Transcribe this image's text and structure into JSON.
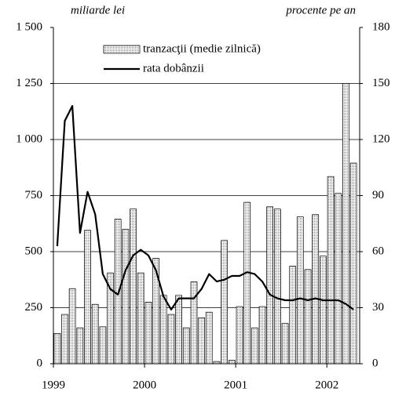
{
  "chart_data": {
    "type": "bar_line",
    "y_label": "miliarde lei",
    "y2_label": "procente pe an",
    "x": [
      1999.042,
      1999.125,
      1999.208,
      1999.292,
      1999.375,
      1999.458,
      1999.542,
      1999.625,
      1999.708,
      1999.792,
      1999.875,
      1999.958,
      2000.042,
      2000.125,
      2000.208,
      2000.292,
      2000.375,
      2000.458,
      2000.542,
      2000.625,
      2000.708,
      2000.792,
      2000.875,
      2000.958,
      2001.042,
      2001.125,
      2001.208,
      2001.292,
      2001.375,
      2001.458,
      2001.542,
      2001.625,
      2001.708,
      2001.792,
      2001.875,
      2001.958,
      2002.042,
      2002.125,
      2002.208,
      2002.292
    ],
    "series": [
      {
        "name": "tranzacţii (medie zilnică)",
        "type": "bar",
        "color": "#bdbdbd",
        "axis": "y",
        "values": [
          135,
          220,
          335,
          160,
          595,
          265,
          165,
          405,
          645,
          600,
          690,
          405,
          275,
          470,
          305,
          220,
          305,
          160,
          365,
          205,
          230,
          10,
          550,
          15,
          255,
          720,
          160,
          255,
          700,
          690,
          180,
          435,
          655,
          420,
          665,
          480,
          835,
          760,
          1250,
          895
        ]
      },
      {
        "name": "rata dobânzii",
        "type": "line",
        "color": "#000000",
        "axis": "y2",
        "values": [
          63,
          130,
          138,
          70,
          92,
          80,
          48,
          40,
          37,
          50,
          58,
          61,
          58,
          50,
          36,
          29,
          35,
          35,
          35,
          40,
          48,
          44,
          45,
          47,
          47,
          49,
          48,
          44,
          37,
          35,
          34,
          34,
          35,
          34,
          35,
          34,
          34,
          34,
          32,
          29
        ]
      }
    ],
    "xlim": [
      1999,
      2002.36
    ],
    "xticks": [
      1999,
      2000,
      2001,
      2002
    ],
    "ylim": [
      0,
      1500
    ],
    "yticks": [
      0,
      250,
      500,
      750,
      {
        "value": 1000,
        "label": "1 000"
      },
      {
        "value": 1250,
        "label": "1 250"
      },
      {
        "value": 1500,
        "label": "1 500"
      }
    ],
    "y2lim": [
      0,
      180
    ],
    "y2ticks": [
      0,
      30,
      60,
      90,
      120,
      150,
      180
    ],
    "grid": true
  }
}
